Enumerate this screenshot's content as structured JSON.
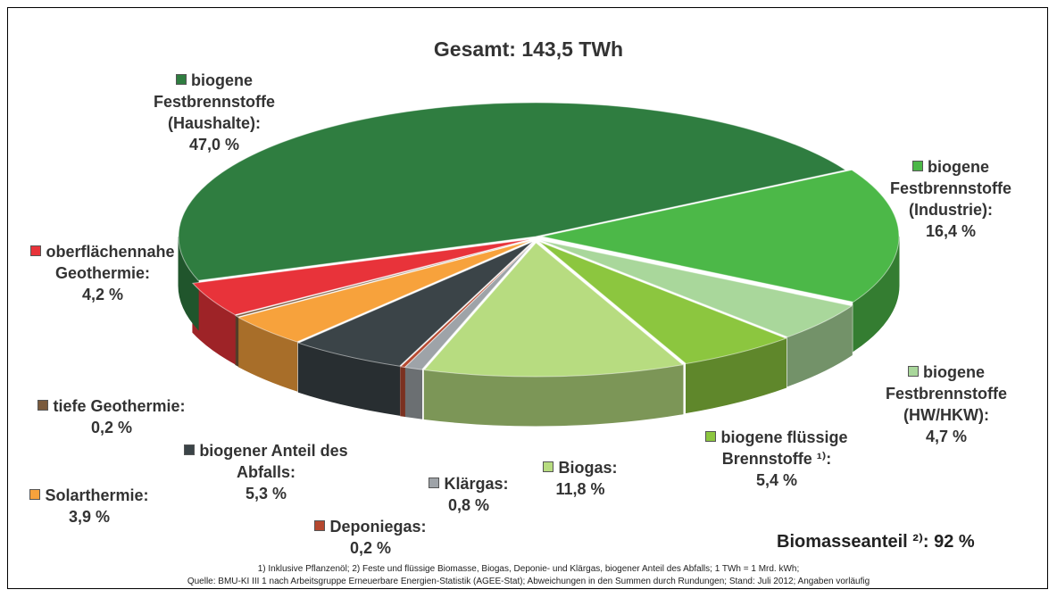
{
  "chart_data": {
    "type": "pie",
    "title": "Gesamt: 143,5 TWh",
    "categories": [
      "biogene Festbrennstoffe (Industrie):",
      "biogene Festbrennstoffe (HW/HKW):",
      "biogene flüssige Brennstoffe ¹⁾:",
      "Biogas:",
      "Klärgas:",
      "Deponiegas:",
      "biogener Anteil des Abfalls:",
      "Solarthermie:",
      "tiefe Geothermie:",
      "oberflächennahe Geothermie:",
      "biogene Festbrennstoffe (Haushalte):"
    ],
    "values": [
      16.4,
      4.7,
      5.4,
      11.8,
      0.8,
      0.2,
      5.3,
      3.9,
      0.2,
      4.2,
      47.0
    ],
    "value_labels": [
      "16,4 %",
      "4,7 %",
      "5,4 %",
      "11,8 %",
      "0,8 %",
      "0,2 %",
      "5,3 %",
      "3,9 %",
      "0,2 %",
      "4,2 %",
      "47,0 %"
    ],
    "colors": [
      "#4cb848",
      "#a9d79b",
      "#8cc63f",
      "#b7dc80",
      "#9ea3a8",
      "#b5482f",
      "#3b4448",
      "#f7a23c",
      "#7a5a3c",
      "#e8333a",
      "#2f7d40"
    ],
    "annotation": "Biomasseanteil ²⁾: 92 %",
    "footnotes": [
      "1) Inklusive Pflanzenöl; 2) Feste und flüssige Biomasse, Biogas, Deponie- und Klärgas, biogener Anteil des Abfalls; 1 TWh = 1 Mrd. kWh;",
      "Quelle: BMU-KI III 1 nach Arbeitsgruppe Erneuerbare Energien-Statistik (AGEE-Stat); Abweichungen in den Summen durch Rundungen; Stand: Juli 2012; Angaben vorläufig"
    ]
  }
}
